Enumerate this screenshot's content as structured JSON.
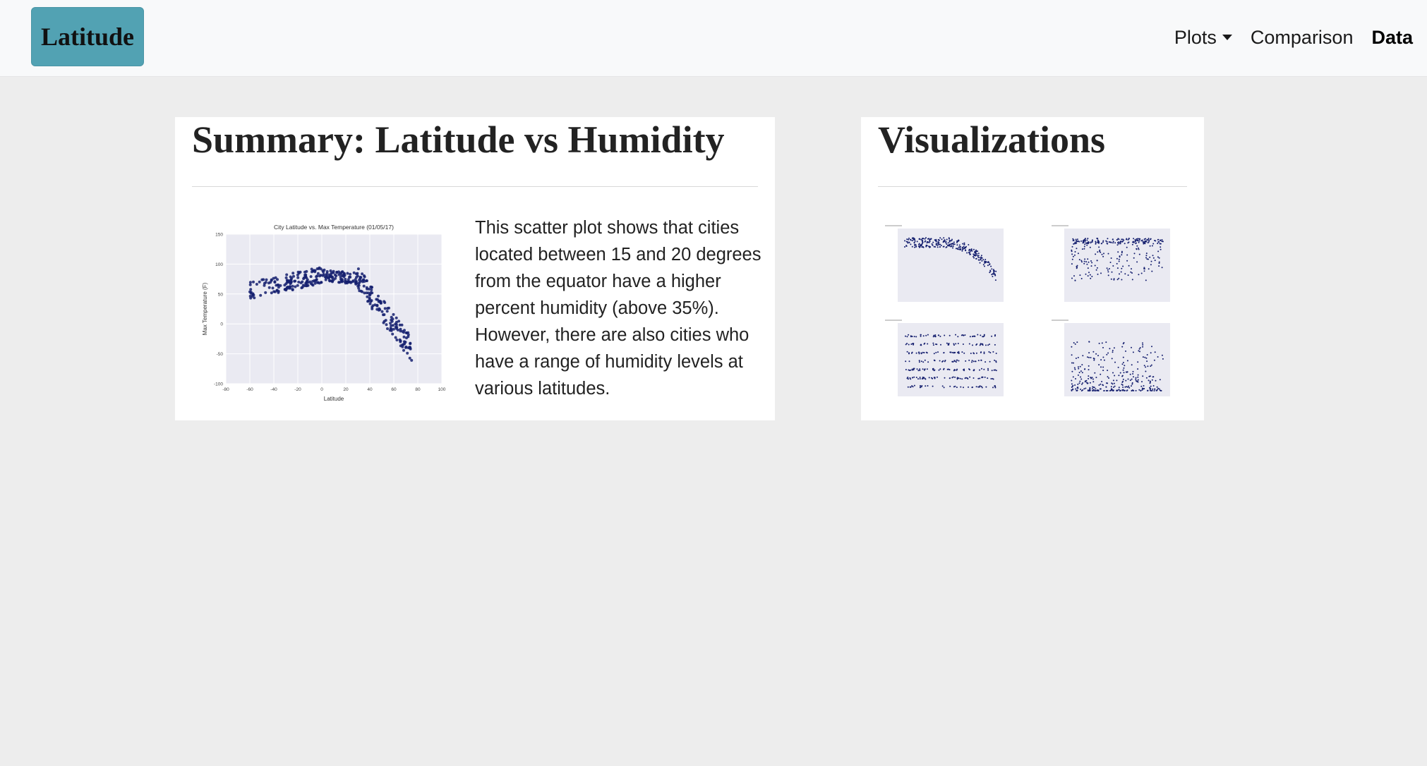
{
  "nav": {
    "brand": "Latitude",
    "links": [
      {
        "label": "Plots",
        "dropdown": true
      },
      {
        "label": "Comparison",
        "dropdown": false
      },
      {
        "label": "Data",
        "dropdown": false,
        "active": true
      }
    ]
  },
  "summary": {
    "title": "Summary: Latitude vs Humidity",
    "text": "This scatter plot shows that cities located between 15 and 20 degrees from the equator have a higher percent humidity (above 35%). However, there are also cities who have a range of humidity levels at various latitudes."
  },
  "visualizations": {
    "title": "Visualizations"
  },
  "colors": {
    "brand_bg": "#52a2b3",
    "navbar_bg": "#f8f9fa",
    "page_bg": "#ededed",
    "plot_bg": "#eaeaf2",
    "point": "#141e6e"
  },
  "chart_data": [
    {
      "type": "scatter",
      "title": "City Latitude vs. Max Temperature (01/05/17)",
      "xlabel": "Latitude",
      "ylabel": "Max Temperature (F)",
      "xlim": [
        -80,
        100
      ],
      "ylim": [
        -100,
        150
      ],
      "xticks": [
        "-80",
        "-60",
        "-40",
        "-20",
        "0",
        "20",
        "40",
        "60",
        "80",
        "100"
      ],
      "yticks": [
        "-100",
        "-50",
        "0",
        "50",
        "100",
        "150"
      ],
      "grid": true
    }
  ]
}
